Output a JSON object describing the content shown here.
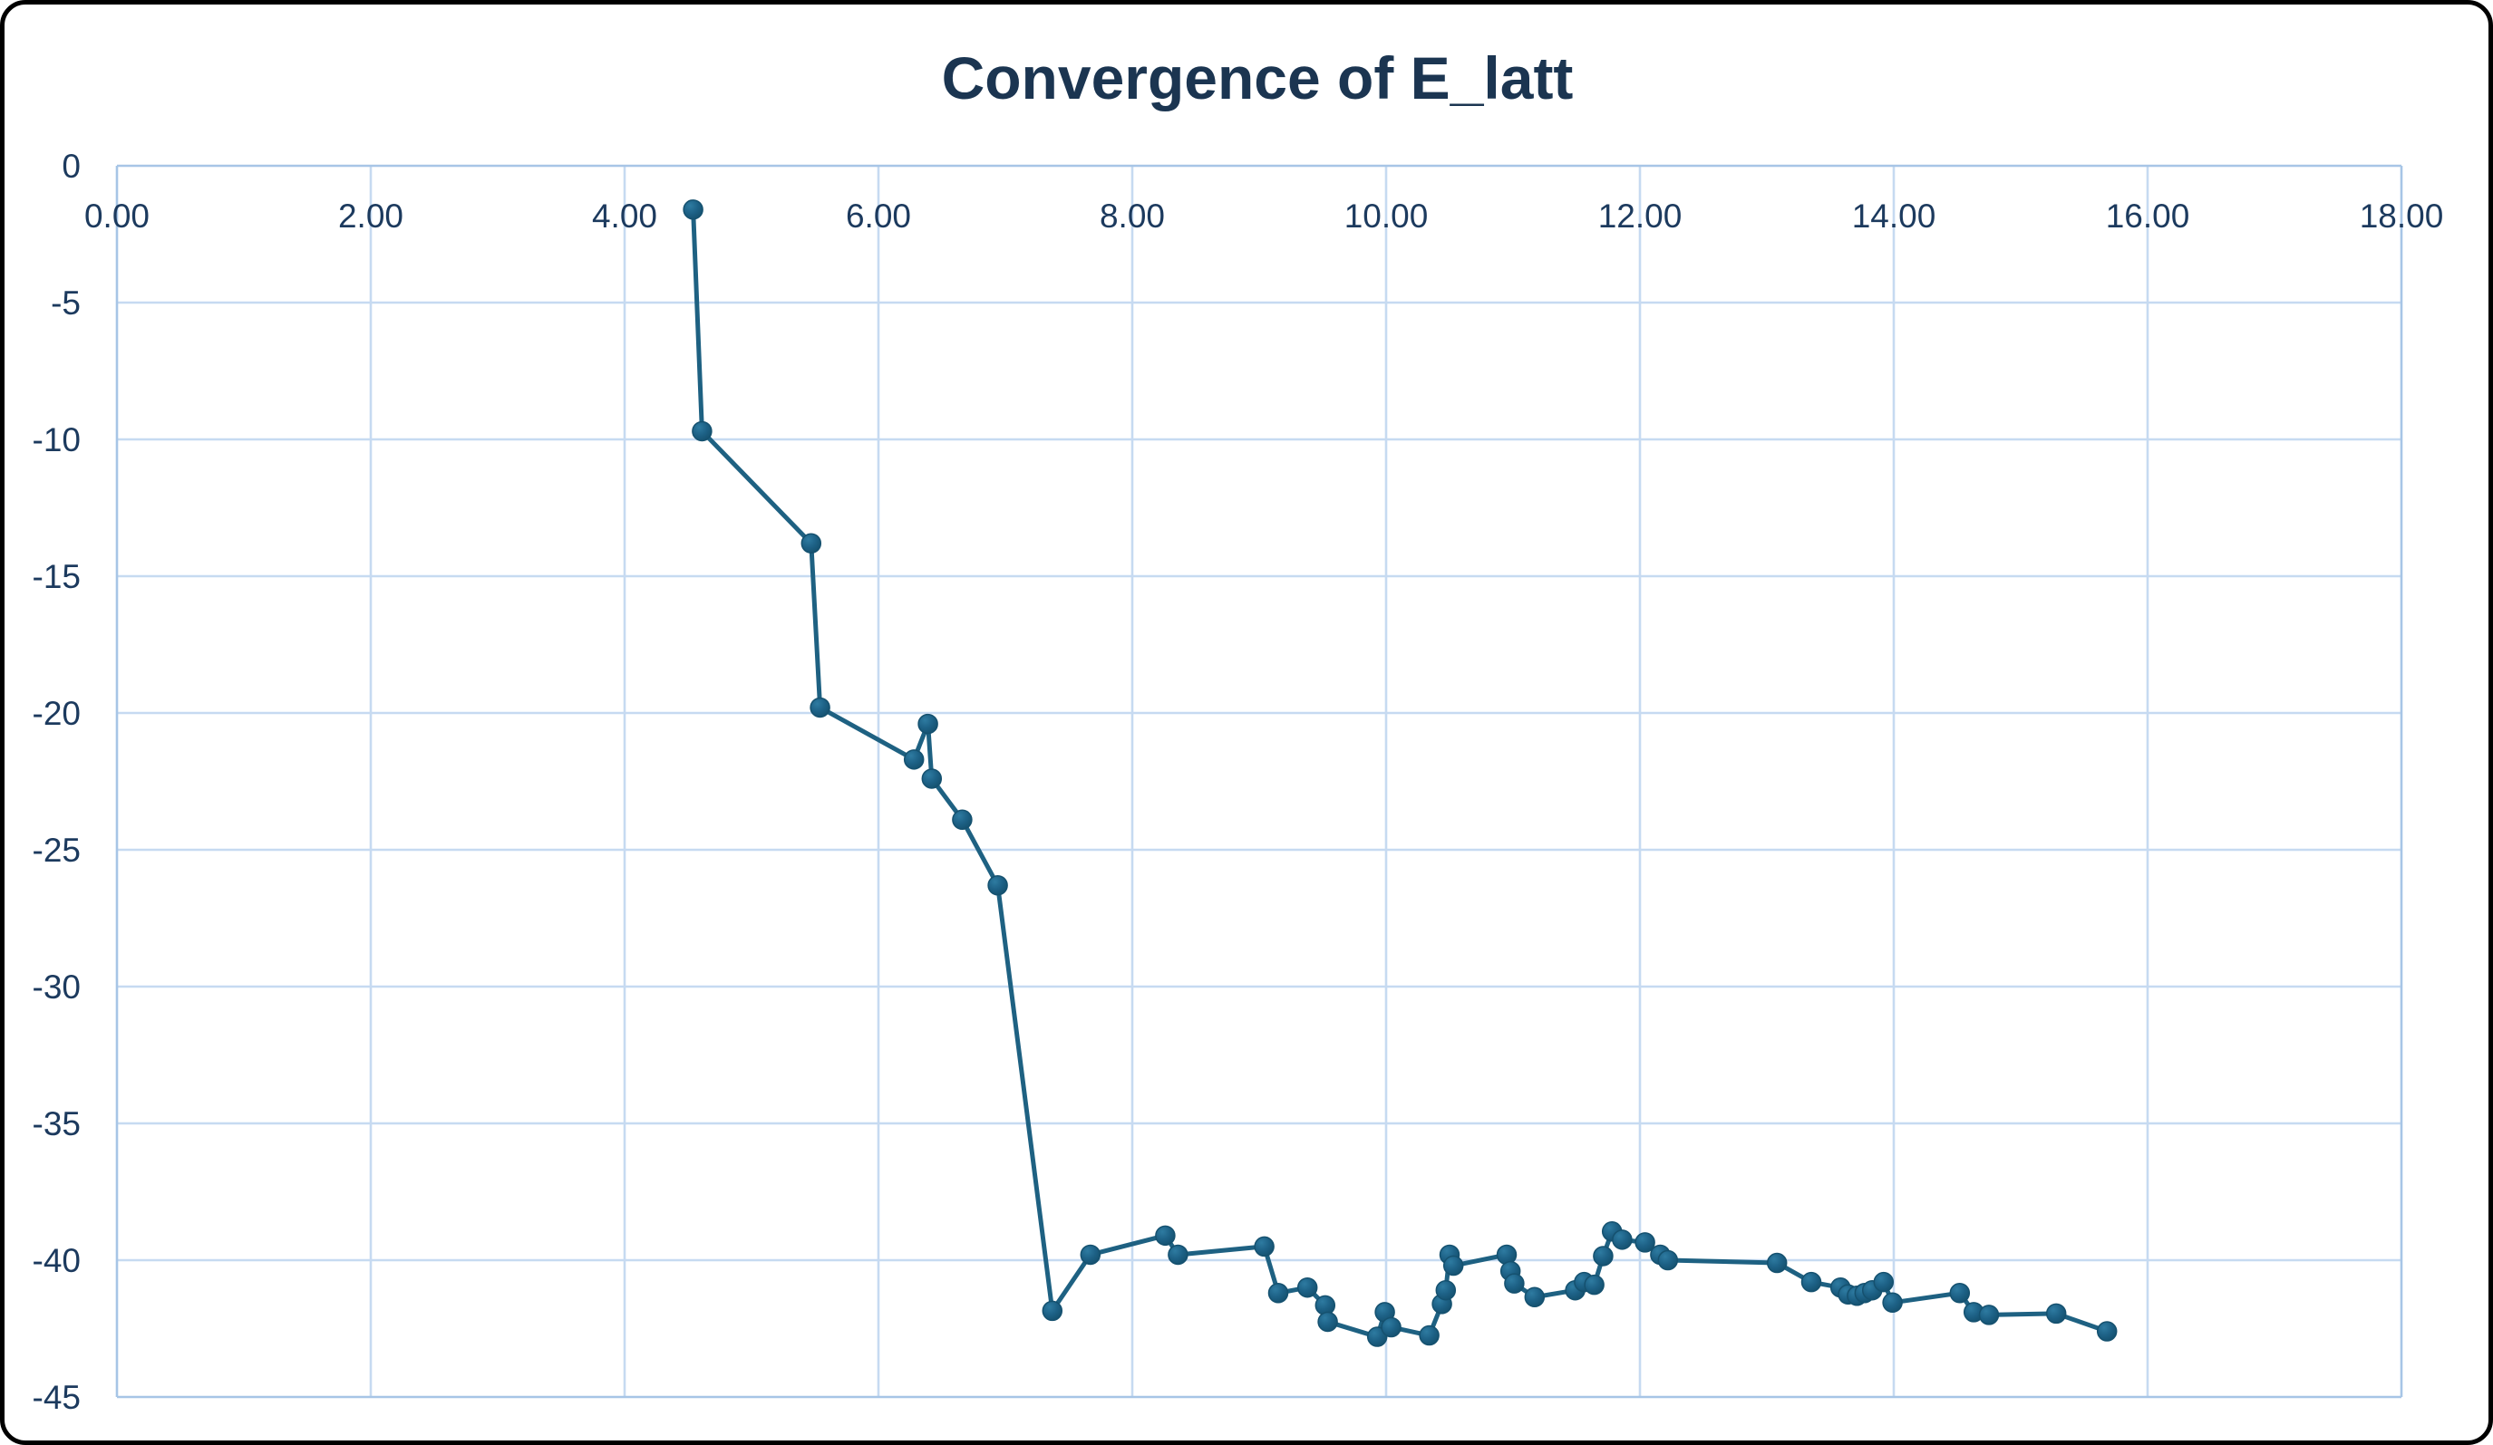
{
  "chart": {
    "title": "Convergence of E_latt"
  },
  "colors": {
    "title_text": "#1b3551",
    "tick_text": "#1c3a5e",
    "gridline": "#c6daf1",
    "axis_line": "#a7c5e6",
    "series_line": "#1e6182",
    "marker_fill": "#1d6186",
    "marker_fill_light": "#2e7ba1",
    "marker_fill_dark": "#15516f",
    "background": "#ffffff",
    "border": "#000000"
  },
  "chart_data": {
    "type": "line",
    "title": "Convergence of E_latt",
    "xlabel": "",
    "ylabel": "",
    "xlim": [
      0,
      18
    ],
    "ylim": [
      -45,
      0
    ],
    "grid": true,
    "legend": false,
    "marker": "circle",
    "x_ticks": {
      "values": [
        0,
        2,
        4,
        6,
        8,
        10,
        12,
        14,
        16,
        18
      ],
      "labels": [
        "0.00",
        "2.00",
        "4.00",
        "6.00",
        "8.00",
        "10.00",
        "12.00",
        "14.00",
        "16.00",
        "18.00"
      ]
    },
    "y_ticks": {
      "values": [
        0,
        -5,
        -10,
        -15,
        -20,
        -25,
        -30,
        -35,
        -40,
        -45
      ],
      "labels": [
        "0",
        "-5",
        "-10",
        "-15",
        "-20",
        "-25",
        "-30",
        "-35",
        "-40",
        "-45"
      ]
    },
    "series": [
      {
        "name": "E_latt",
        "points": [
          [
            4.54,
            -1.6
          ],
          [
            4.61,
            -9.7
          ],
          [
            5.47,
            -13.8
          ],
          [
            5.54,
            -19.8
          ],
          [
            6.28,
            -21.7
          ],
          [
            6.39,
            -20.4
          ],
          [
            6.42,
            -22.4
          ],
          [
            6.66,
            -23.9
          ],
          [
            6.94,
            -26.3
          ],
          [
            7.37,
            -41.85
          ],
          [
            7.67,
            -39.8
          ],
          [
            8.26,
            -39.1
          ],
          [
            8.36,
            -39.8
          ],
          [
            9.04,
            -39.5
          ],
          [
            9.15,
            -41.2
          ],
          [
            9.38,
            -41.0
          ],
          [
            9.52,
            -41.65
          ],
          [
            9.54,
            -42.25
          ],
          [
            9.93,
            -42.8
          ],
          [
            9.99,
            -41.9
          ],
          [
            10.04,
            -42.45
          ],
          [
            10.34,
            -42.75
          ],
          [
            10.44,
            -41.6
          ],
          [
            10.47,
            -41.1
          ],
          [
            10.5,
            -39.8
          ],
          [
            10.53,
            -40.2
          ],
          [
            10.95,
            -39.8
          ],
          [
            10.98,
            -40.4
          ],
          [
            11.01,
            -40.85
          ],
          [
            11.17,
            -41.35
          ],
          [
            11.49,
            -41.1
          ],
          [
            11.56,
            -40.8
          ],
          [
            11.64,
            -40.9
          ],
          [
            11.71,
            -39.85
          ],
          [
            11.78,
            -38.95
          ],
          [
            11.86,
            -39.25
          ],
          [
            12.04,
            -39.35
          ],
          [
            12.16,
            -39.8
          ],
          [
            12.22,
            -40.0
          ],
          [
            13.08,
            -40.1
          ],
          [
            13.35,
            -40.8
          ],
          [
            13.58,
            -41.0
          ],
          [
            13.64,
            -41.25
          ],
          [
            13.71,
            -41.3
          ],
          [
            13.77,
            -41.2
          ],
          [
            13.83,
            -41.1
          ],
          [
            13.92,
            -40.8
          ],
          [
            13.99,
            -41.55
          ],
          [
            14.52,
            -41.2
          ],
          [
            14.63,
            -41.9
          ],
          [
            14.75,
            -42.0
          ],
          [
            15.28,
            -41.95
          ],
          [
            15.68,
            -42.6
          ]
        ]
      }
    ]
  }
}
